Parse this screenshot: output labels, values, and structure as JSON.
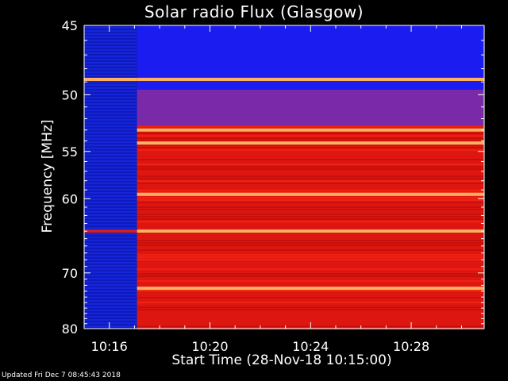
{
  "chart_data": {
    "type": "heatmap",
    "title": "Solar radio Flux (Glasgow)",
    "xlabel": "Start Time (28-Nov-18 10:15:00)",
    "ylabel": "Frequency [MHz]",
    "x_unit": "minutes after 10:15:00",
    "xlim": [
      0,
      15.9
    ],
    "ylim": [
      45,
      80
    ],
    "y_scale": "reciprocal",
    "x_ticks": [
      {
        "value": 1,
        "label": "10:16"
      },
      {
        "value": 5,
        "label": "10:20"
      },
      {
        "value": 9,
        "label": "10:24"
      },
      {
        "value": 13,
        "label": "10:28"
      }
    ],
    "y_ticks": [
      {
        "value": 45,
        "label": "45"
      },
      {
        "value": 50,
        "label": "50"
      },
      {
        "value": 55,
        "label": "55"
      },
      {
        "value": 60,
        "label": "60"
      },
      {
        "value": 70,
        "label": "70"
      },
      {
        "value": 80,
        "label": "80"
      }
    ],
    "data_gap_end_minute": 2.1,
    "regions": [
      {
        "freq_range": [
          45,
          49.6
        ],
        "level": "low"
      },
      {
        "freq_range": [
          49.6,
          52.6
        ],
        "level": "medium"
      },
      {
        "freq_range": [
          52.6,
          80
        ],
        "level": "high"
      }
    ],
    "bright_lines_mhz": [
      48.8,
      53.0,
      54.2,
      59.5,
      64.0,
      72.5
    ],
    "colors": {
      "low": "#1a1cf0",
      "medium": "#7a2aa8",
      "high": "#e01812",
      "line": "#ffb060"
    }
  },
  "footer": {
    "updated": "Updated Fri Dec  7 08:45:43 2018"
  }
}
